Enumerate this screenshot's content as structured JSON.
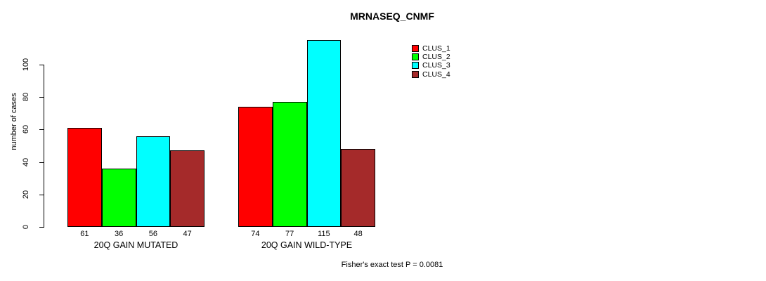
{
  "chart_data": {
    "type": "bar",
    "title": "MRNASEQ_CNMF",
    "xlabel": "",
    "ylabel": "number of cases",
    "categories": [
      "20Q GAIN MUTATED",
      "20Q GAIN WILD-TYPE"
    ],
    "series": [
      {
        "name": "CLUS_1",
        "color": "#ff0000",
        "values": [
          61,
          74
        ]
      },
      {
        "name": "CLUS_2",
        "color": "#00ff00",
        "values": [
          36,
          77
        ]
      },
      {
        "name": "CLUS_3",
        "color": "#00ffff",
        "values": [
          56,
          115
        ]
      },
      {
        "name": "CLUS_4",
        "color": "#a52a2a",
        "values": [
          47,
          48
        ]
      }
    ],
    "yticks": [
      0,
      20,
      40,
      60,
      80,
      100
    ],
    "ylim": [
      0,
      115
    ],
    "bar_value_labels": true,
    "grid": false,
    "legend_position": "top-right",
    "annotation": "Fisher's exact test P = 0.0081"
  }
}
